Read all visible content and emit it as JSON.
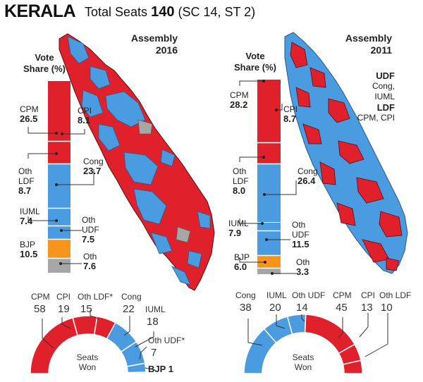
{
  "title": {
    "state": "KERALA",
    "prefix": "Total Seats",
    "total": "140",
    "reserved": "(SC 14, ST 2)"
  },
  "colors": {
    "red": "#e0202a",
    "blue": "#4a9be0",
    "orange": "#f7941d",
    "gray": "#a6a6a6"
  },
  "panel_2016": {
    "heading_line1": "Assembly",
    "heading_line2": "2016",
    "vote_share_title_line1": "Vote",
    "vote_share_title_line2": "Share (%)",
    "vote_share": [
      {
        "party": "CPM",
        "value": "26.5"
      },
      {
        "party": "CPI",
        "value": "8.1"
      },
      {
        "party": "Oth LDF",
        "value": "8.7"
      },
      {
        "party": "Cong",
        "value": "23.7"
      },
      {
        "party": "IUML",
        "value": "7.4"
      },
      {
        "party": "Oth UDF",
        "value": "7.5"
      },
      {
        "party": "BJP",
        "value": "10.5"
      },
      {
        "party": "Oth",
        "value": "7.6"
      }
    ],
    "seats": [
      {
        "party": "CPM",
        "seats": "58"
      },
      {
        "party": "CPI",
        "seats": "19"
      },
      {
        "party": "Oth LDF*",
        "seats": "15"
      },
      {
        "party": "Cong",
        "seats": "22"
      },
      {
        "party": "IUML",
        "seats": "18"
      },
      {
        "party": "Oth UDF*",
        "seats": "7"
      },
      {
        "party": "BJP",
        "seats": "1"
      }
    ],
    "seats_title_line1": "Seats",
    "seats_title_line2": "Won"
  },
  "panel_2011": {
    "heading_line1": "Assembly",
    "heading_line2": "2011",
    "vote_share_title_line1": "Vote",
    "vote_share_title_line2": "Share (%)",
    "legend": {
      "udf_label": "UDF",
      "udf_parties": "Cong, IUML",
      "ldf_label": "LDF",
      "ldf_parties": "CPM, CPI"
    },
    "vote_share": [
      {
        "party": "CPM",
        "value": "28.2"
      },
      {
        "party": "CPI",
        "value": "8.7"
      },
      {
        "party": "Oth LDF",
        "value": "8.0"
      },
      {
        "party": "Cong",
        "value": "26.4"
      },
      {
        "party": "IUML",
        "value": "7.9"
      },
      {
        "party": "Oth UDF",
        "value": "11.5"
      },
      {
        "party": "BJP",
        "value": "6.0"
      },
      {
        "party": "Oth",
        "value": "3.3"
      }
    ],
    "seats": [
      {
        "party": "Cong",
        "seats": "38"
      },
      {
        "party": "IUML",
        "seats": "20"
      },
      {
        "party": "Oth UDF",
        "seats": "14"
      },
      {
        "party": "CPM",
        "seats": "45"
      },
      {
        "party": "CPI",
        "seats": "13"
      },
      {
        "party": "Oth LDF",
        "seats": "10"
      }
    ],
    "seats_title_line1": "Seats",
    "seats_title_line2": "Won"
  }
}
